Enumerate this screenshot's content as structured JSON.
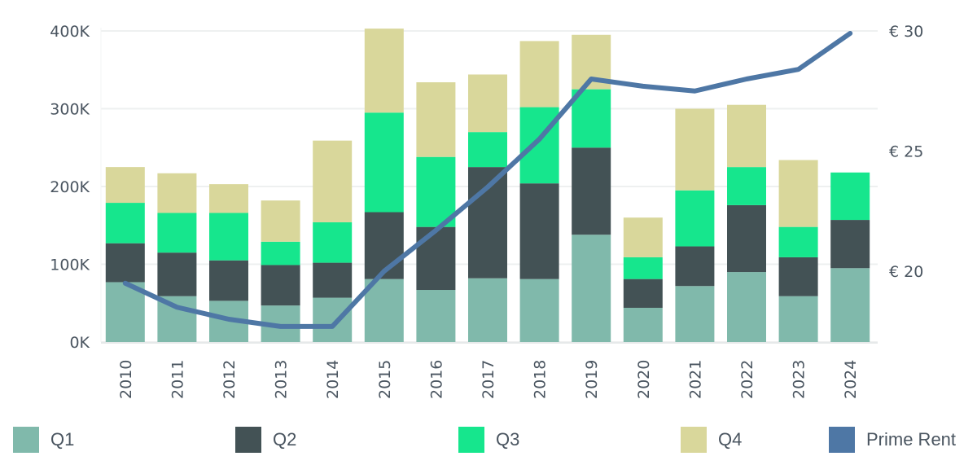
{
  "chart_data": {
    "type": "bar",
    "stacked": true,
    "title": "",
    "xlabel": "",
    "ylabel": "",
    "y2label": "",
    "categories": [
      "2010",
      "2011",
      "2012",
      "2013",
      "2014",
      "2015",
      "2016",
      "2017",
      "2018",
      "2019",
      "2020",
      "2021",
      "2022",
      "2023",
      "2024"
    ],
    "series": [
      {
        "name": "Q1",
        "type": "bar",
        "axis": "left",
        "color": "#80b9ab",
        "values": [
          77,
          59,
          53,
          47,
          57,
          81,
          67,
          82,
          81,
          138,
          44,
          72,
          90,
          59,
          95
        ]
      },
      {
        "name": "Q2",
        "type": "bar",
        "axis": "left",
        "color": "#435255",
        "values": [
          50,
          56,
          52,
          52,
          45,
          86,
          81,
          143,
          123,
          112,
          37,
          51,
          86,
          50,
          62
        ]
      },
      {
        "name": "Q3",
        "type": "bar",
        "axis": "left",
        "color": "#16e68d",
        "values": [
          52,
          51,
          61,
          30,
          52,
          128,
          90,
          45,
          98,
          75,
          28,
          72,
          49,
          39,
          61
        ]
      },
      {
        "name": "Q4",
        "type": "bar",
        "axis": "left",
        "color": "#d9d79b",
        "values": [
          46,
          51,
          37,
          53,
          105,
          108,
          96,
          74,
          85,
          70,
          51,
          105,
          80,
          86,
          0
        ]
      },
      {
        "name": "Prime Rent",
        "type": "line",
        "axis": "right",
        "color": "#4e77a5",
        "values": [
          19.5,
          18.5,
          18.0,
          17.7,
          17.7,
          20.0,
          21.7,
          23.5,
          25.5,
          28.0,
          27.7,
          27.5,
          28.0,
          28.4,
          29.9
        ]
      }
    ],
    "value_unit_left": "K",
    "y_ticks": [
      "0K",
      "100K",
      "200K",
      "300K",
      "400K"
    ],
    "y_tick_values": [
      0,
      100,
      200,
      300,
      400
    ],
    "ylim": [
      0,
      400
    ],
    "y2_ticks": [
      "€ 20",
      "€ 25",
      "€ 30"
    ],
    "y2_tick_values": [
      20,
      25,
      30
    ],
    "y2lim": [
      17,
      30
    ],
    "grid": true,
    "legend_position": "bottom",
    "legend": [
      "Q1",
      "Q2",
      "Q3",
      "Q4",
      "Prime Rent"
    ]
  }
}
